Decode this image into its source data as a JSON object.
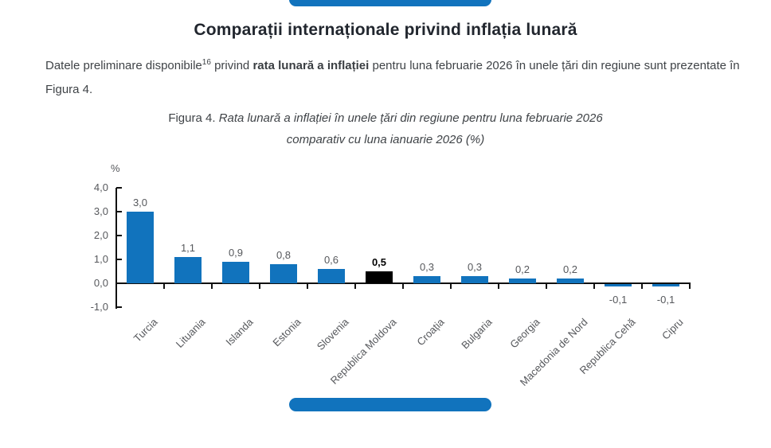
{
  "colors": {
    "accent_blue": "#1173bd",
    "title_text": "#21262e",
    "body_text": "#3f4347",
    "chart_text_gray": "#56585c",
    "axis_black": "#111111",
    "highlight_black": "#000000"
  },
  "title": "Comparații internaționale privind inflația lunară",
  "paragraph": {
    "pre": "Datele preliminare disponibile",
    "superscript": "16",
    "mid": " privind ",
    "bold": "rata lunară a inflației",
    "post": " pentru luna februarie 2026 în unele țări din regiune sunt prezentate în Figura 4."
  },
  "figure_caption": {
    "label": "Figura 4. ",
    "line1": "Rata lunară a inflației în unele țări din regiune pentru luna februarie 2026",
    "line2": "comparativ cu luna ianuarie 2026 (%)"
  },
  "chart_data": {
    "type": "bar",
    "title": "Rata lunară a inflației în unele țări din regiune, februarie 2026 vs ianuarie 2026 (%)",
    "unit_label": "%",
    "categories": [
      "Turcia",
      "Lituania",
      "Islanda",
      "Estonia",
      "Slovenia",
      "Republica Moldova",
      "Croația",
      "Bulgaria",
      "Georgia",
      "Macedonia de Nord",
      "Republica Cehă",
      "Cipru"
    ],
    "values": [
      3.0,
      1.1,
      0.9,
      0.8,
      0.6,
      0.5,
      0.3,
      0.3,
      0.2,
      0.2,
      -0.1,
      -0.1
    ],
    "value_labels": [
      "3,0",
      "1,1",
      "0,9",
      "0,8",
      "0,6",
      "0,5",
      "0,3",
      "0,3",
      "0,2",
      "0,2",
      "-0,1",
      "-0,1"
    ],
    "highlight_index": 5,
    "bar_color": "#1173bd",
    "highlight_color": "#000000",
    "ylim": [
      -1.0,
      4.0
    ],
    "y_ticks": [
      {
        "v": 4,
        "label": "4,0"
      },
      {
        "v": 3,
        "label": "3,0"
      },
      {
        "v": 2,
        "label": "2,0"
      },
      {
        "v": 1,
        "label": "1,0"
      },
      {
        "v": 0,
        "label": "0,0"
      },
      {
        "v": -1,
        "label": "-1,0"
      }
    ],
    "grid": false,
    "legend": "none"
  }
}
